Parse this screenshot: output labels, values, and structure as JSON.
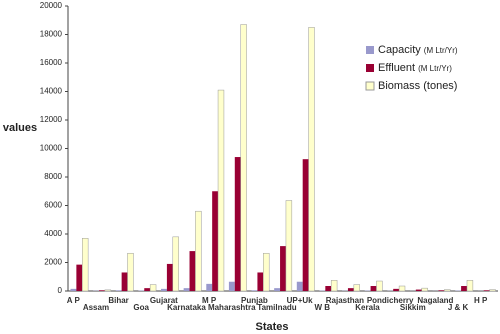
{
  "chart_data": {
    "type": "bar",
    "x_label": "States",
    "y_label": "values",
    "categories": [
      "A P",
      "Assam",
      "Bihar",
      "Goa",
      "Gujarat",
      "Karnataka",
      "M P",
      "Maharashtra",
      "Punjab",
      "Tamilnadu",
      "UP+Uk",
      "W B",
      "Rajasthan",
      "Kerala",
      "Pondicherry",
      "Sikkim",
      "Nagaland",
      "J & K",
      "H P"
    ],
    "series": [
      {
        "name": "Capacity",
        "unit": "(M Ltr/Yr)",
        "color": "#9999cc",
        "values": [
          150,
          20,
          50,
          30,
          150,
          200,
          500,
          650,
          50,
          200,
          650,
          30,
          20,
          30,
          20,
          10,
          10,
          30,
          10
        ]
      },
      {
        "name": "Effluent",
        "unit": "(M Ltr/Yr)",
        "color": "#990033",
        "values": [
          1850,
          50,
          1300,
          200,
          1900,
          2800,
          7000,
          9400,
          1300,
          3150,
          9250,
          350,
          200,
          350,
          150,
          100,
          50,
          350,
          50
        ]
      },
      {
        "name": "Biomass (tones)",
        "color": "#ffffcc",
        "values": [
          3700,
          80,
          2650,
          450,
          3800,
          5600,
          14100,
          18700,
          2650,
          6350,
          18500,
          750,
          450,
          700,
          350,
          200,
          100,
          750,
          100
        ]
      }
    ],
    "ylim": [
      0,
      20000
    ],
    "yticks": [
      0,
      2000,
      4000,
      6000,
      8000,
      10000,
      12000,
      14000,
      16000,
      18000,
      20000
    ]
  }
}
